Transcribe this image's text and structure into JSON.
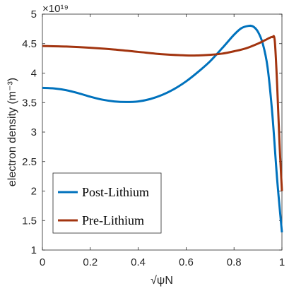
{
  "chart_data": {
    "type": "line",
    "xlabel": "√ψN",
    "ylabel": "electron density (m⁻³)",
    "y_exponent": "×10¹⁹",
    "xlim": [
      0,
      1
    ],
    "ylim": [
      1,
      5
    ],
    "x_ticks": [
      0,
      0.2,
      0.4,
      0.6,
      0.8,
      1
    ],
    "x_tick_labels": [
      "0",
      "0.2",
      "0.4",
      "0.6",
      "0.8",
      "1"
    ],
    "y_ticks": [
      1,
      1.5,
      2,
      2.5,
      3,
      3.5,
      4,
      4.5,
      5
    ],
    "y_tick_labels": [
      "1",
      "1.5",
      "2",
      "2.5",
      "3",
      "3.5",
      "4",
      "4.5",
      "5"
    ],
    "grid": false,
    "legend_position": "bottom-left",
    "series": [
      {
        "name": "Post-Lithium",
        "color": "#0072bd",
        "x": [
          0,
          0.05,
          0.1,
          0.15,
          0.2,
          0.25,
          0.3,
          0.35,
          0.4,
          0.45,
          0.5,
          0.55,
          0.6,
          0.65,
          0.7,
          0.75,
          0.8,
          0.83,
          0.86,
          0.88,
          0.9,
          0.92,
          0.94,
          0.96,
          0.98,
          1.0
        ],
        "y": [
          3.75,
          3.74,
          3.71,
          3.66,
          3.6,
          3.55,
          3.52,
          3.51,
          3.52,
          3.56,
          3.63,
          3.73,
          3.86,
          4.02,
          4.2,
          4.42,
          4.65,
          4.76,
          4.8,
          4.79,
          4.7,
          4.5,
          4.1,
          3.3,
          2.2,
          1.3
        ]
      },
      {
        "name": "Pre-Lithium",
        "color": "#a2340f",
        "x": [
          0,
          0.1,
          0.2,
          0.3,
          0.4,
          0.5,
          0.6,
          0.65,
          0.7,
          0.75,
          0.8,
          0.85,
          0.9,
          0.93,
          0.95,
          0.96,
          0.97,
          0.98,
          0.99,
          1.0
        ],
        "y": [
          4.46,
          4.45,
          4.43,
          4.4,
          4.36,
          4.32,
          4.3,
          4.3,
          4.31,
          4.33,
          4.37,
          4.42,
          4.5,
          4.56,
          4.6,
          4.61,
          4.55,
          3.8,
          2.8,
          2.0
        ]
      }
    ]
  }
}
